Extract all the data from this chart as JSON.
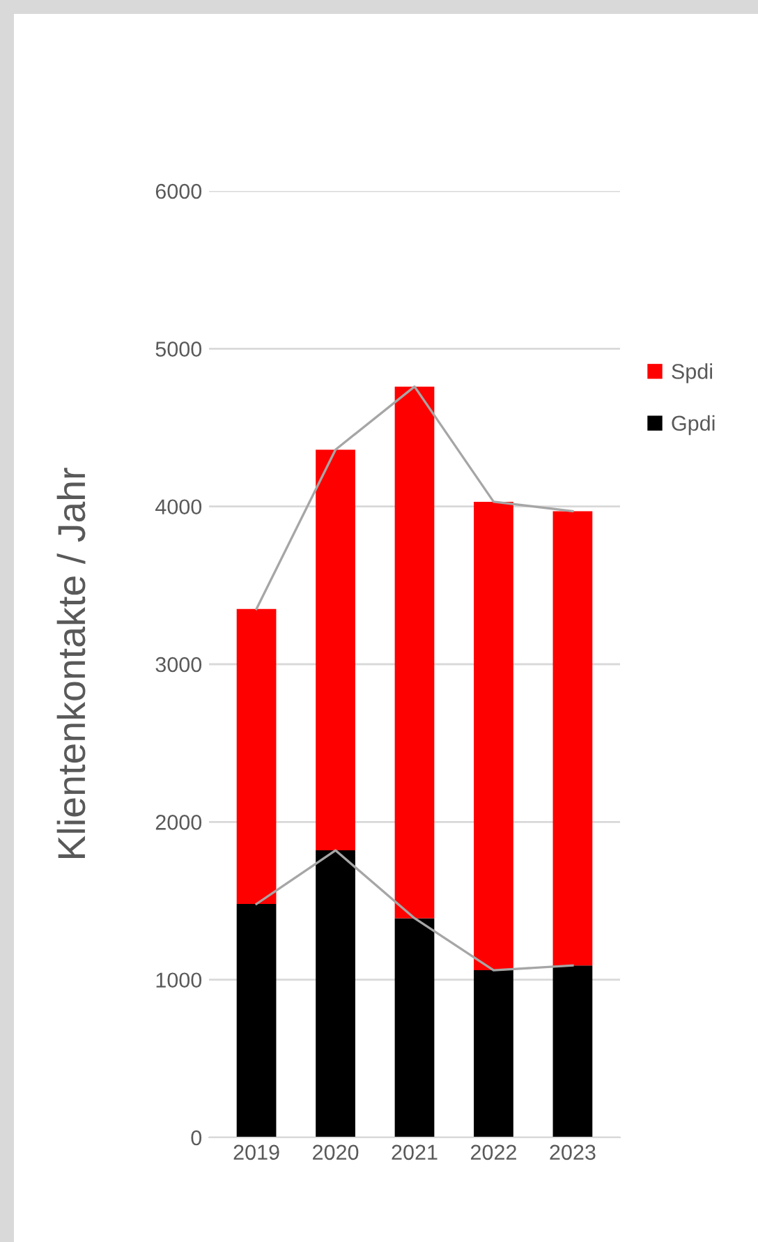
{
  "chart_data": {
    "type": "bar",
    "stacked": true,
    "ylabel": "Klientenkontakte / Jahr",
    "categories": [
      "2019",
      "2020",
      "2021",
      "2022",
      "2023"
    ],
    "series": [
      {
        "name": "Gpdi",
        "color": "#000000",
        "values": [
          1480,
          1820,
          1390,
          1060,
          1090
        ]
      },
      {
        "name": "Spdi",
        "color": "#ff0000",
        "values": [
          1870,
          2540,
          3370,
          2970,
          2880
        ]
      },
      {
        "type": "line",
        "color": "#a6a6a6",
        "values": [
          1480,
          1820,
          1390,
          1060,
          1090
        ]
      },
      {
        "type": "line",
        "color": "#a6a6a6",
        "values": [
          3350,
          4360,
          4760,
          4030,
          3970
        ]
      }
    ],
    "ylim": [
      0,
      6000
    ],
    "yticks": [
      0,
      1000,
      2000,
      3000,
      4000,
      5000,
      6000
    ],
    "grid": "y",
    "legend": "right"
  }
}
